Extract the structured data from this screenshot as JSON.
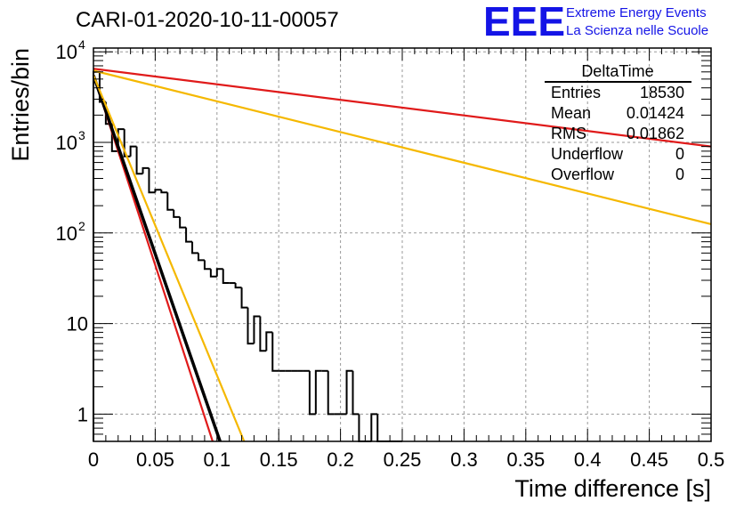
{
  "title": "CARI-01-2020-10-11-00057",
  "logo": {
    "mark": "EEE",
    "line1": "Extreme Energy Events",
    "line2": "La Scienza nelle Scuole",
    "color": "#1414e6"
  },
  "stats": {
    "name": "DeltaTime",
    "rows": [
      {
        "label": "Entries",
        "value": "18530"
      },
      {
        "label": "Mean",
        "value": "0.01424"
      },
      {
        "label": "RMS",
        "value": "0.01862"
      },
      {
        "label": "Underflow",
        "value": "0"
      },
      {
        "label": "Overflow",
        "value": "0"
      }
    ]
  },
  "chart_data": {
    "type": "line",
    "xlabel": "Time difference [s]",
    "ylabel": "Entries/bin",
    "xlim": [
      0,
      0.5
    ],
    "ylim": [
      0.5,
      11000
    ],
    "yscale": "log",
    "grid": true,
    "x_ticks": [
      "0",
      "0.05",
      "0.1",
      "0.15",
      "0.2",
      "0.25",
      "0.3",
      "0.35",
      "0.4",
      "0.45",
      "0.5"
    ],
    "y_ticks": [
      {
        "value": 1,
        "label": "1"
      },
      {
        "value": 10,
        "label": "10"
      },
      {
        "value": 100,
        "label": "10",
        "exp": "2"
      },
      {
        "value": 1000,
        "label": "10",
        "exp": "3"
      },
      {
        "value": 10000,
        "label": "10",
        "exp": "4"
      }
    ],
    "histogram": {
      "name": "DeltaTime",
      "bin_width": 0.005,
      "color": "#000000",
      "counts": [
        6000,
        2800,
        1600,
        800,
        1400,
        700,
        900,
        450,
        520,
        280,
        300,
        280,
        180,
        150,
        115,
        80,
        60,
        50,
        40,
        33,
        40,
        28,
        28,
        25,
        15,
        6,
        12,
        5,
        8,
        3,
        3,
        3,
        3,
        3,
        3,
        1,
        3,
        3,
        1,
        1,
        1,
        3,
        1,
        0.5,
        0.5,
        1,
        0.5,
        0.5,
        0.5,
        0.5
      ]
    },
    "fits": [
      {
        "color": "#e01a1a",
        "points": [
          [
            0,
            6500
          ],
          [
            0.5,
            900
          ]
        ]
      },
      {
        "color": "#f5b800",
        "points": [
          [
            0,
            6200
          ],
          [
            0.5,
            125
          ]
        ]
      },
      {
        "color": "#e01a1a",
        "points": [
          [
            0,
            5500
          ],
          [
            0.0965,
            0.5
          ]
        ]
      },
      {
        "color": "#000000",
        "points": [
          [
            0,
            5500
          ],
          [
            0.1025,
            0.5
          ]
        ]
      },
      {
        "color": "#f5b800",
        "points": [
          [
            0,
            5500
          ],
          [
            0.122,
            0.5
          ]
        ]
      }
    ]
  }
}
